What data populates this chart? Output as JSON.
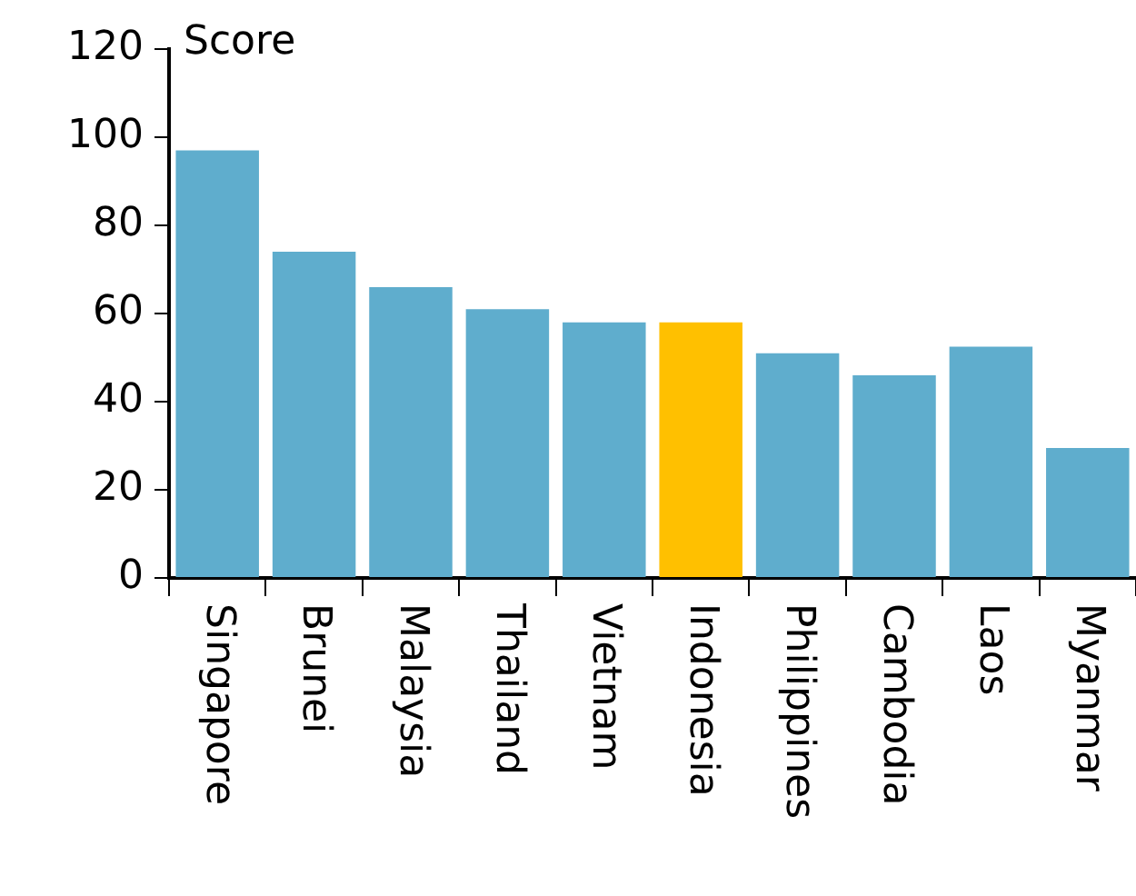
{
  "chart_data": {
    "type": "bar",
    "ylabel": "Score",
    "categories": [
      "Singapore",
      "Brunei",
      "Malaysia",
      "Thailand",
      "Vietnam",
      "Indonesia",
      "Philippines",
      "Cambodia",
      "Laos",
      "Myanmar"
    ],
    "values": [
      97,
      74,
      66,
      61,
      58,
      58,
      51,
      46,
      52.5,
      29.5
    ],
    "colors": [
      "#5fadcd",
      "#5fadcd",
      "#5fadcd",
      "#5fadcd",
      "#5fadcd",
      "#ffc000",
      "#5fadcd",
      "#5fadcd",
      "#5fadcd",
      "#5fadcd"
    ],
    "ylim": [
      0,
      120
    ],
    "yticks": [
      0,
      20,
      40,
      60,
      80,
      100,
      120
    ],
    "grid": false,
    "legend": false
  }
}
